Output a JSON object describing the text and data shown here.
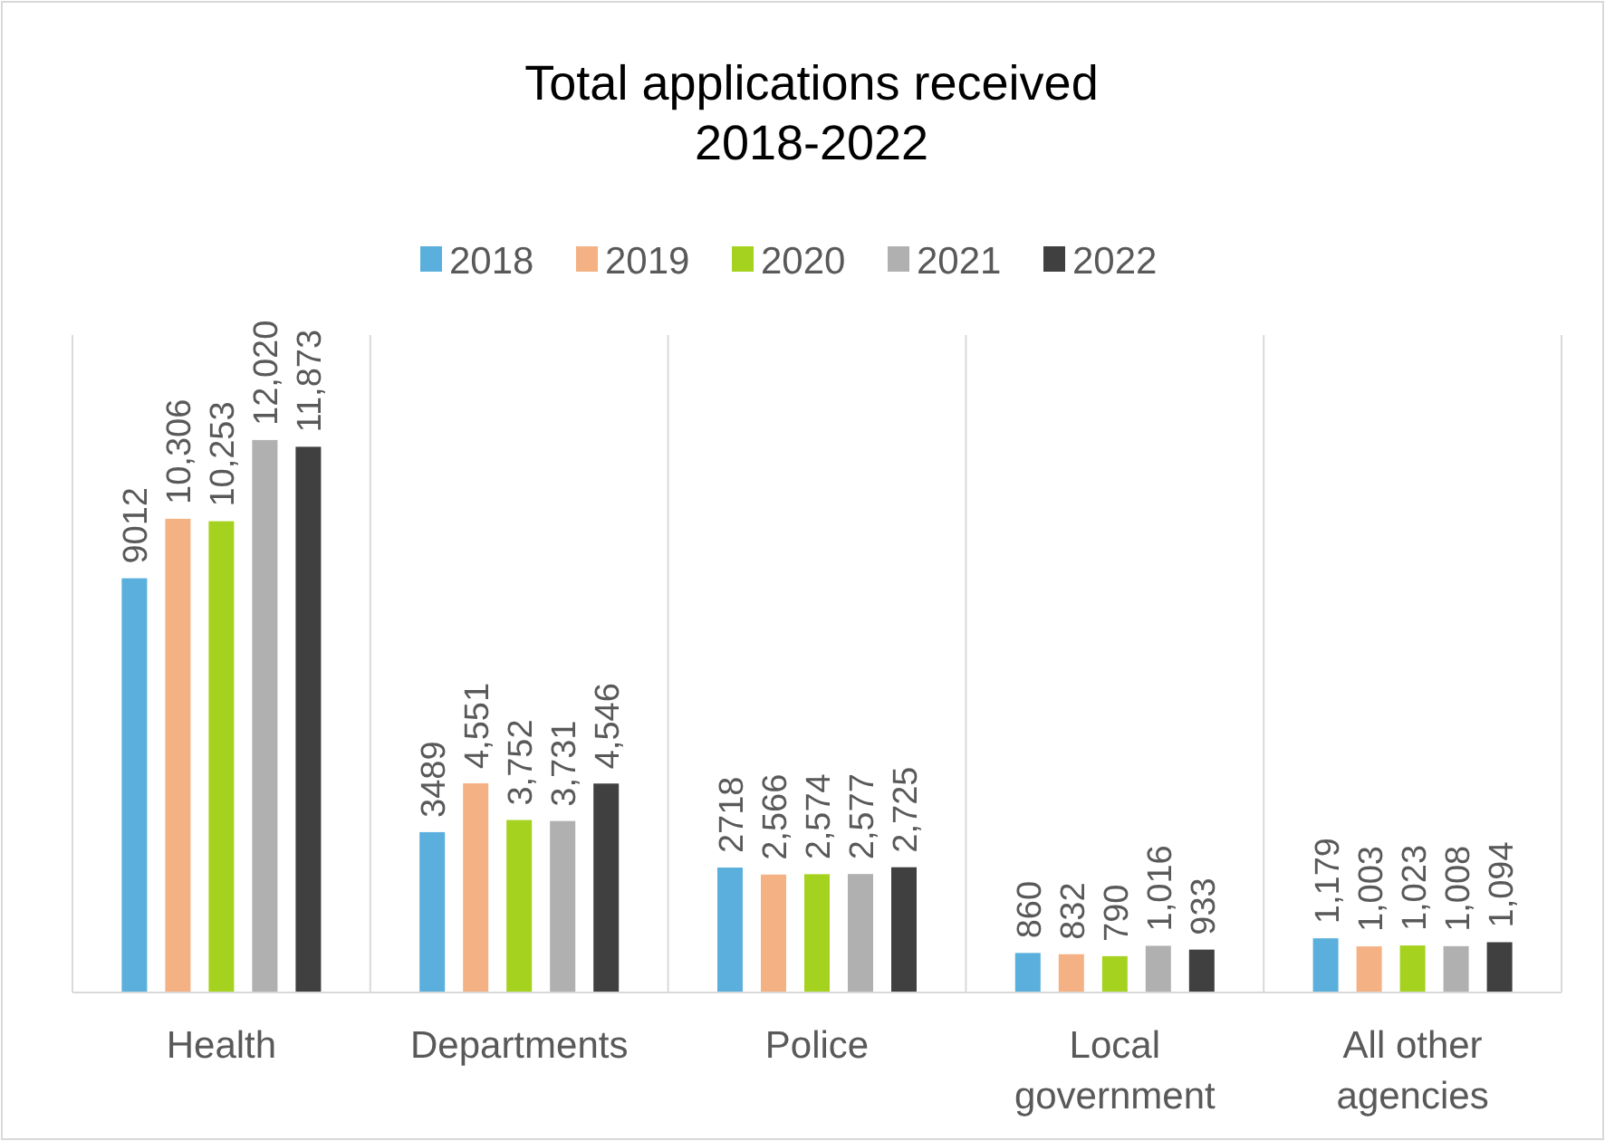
{
  "chart_data": {
    "type": "bar",
    "title": "Total applications received\n2018-2022",
    "categories": [
      "Health",
      "Departments",
      "Police",
      "Local government",
      "All other agencies"
    ],
    "series": [
      {
        "name": "2018",
        "color": "#5aafdc",
        "values": [
          9012,
          3489,
          2718,
          860,
          1179
        ],
        "value_labels": [
          "9012",
          "3489",
          "2718",
          "860",
          "1,179"
        ]
      },
      {
        "name": "2019",
        "color": "#f4b183",
        "values": [
          10306,
          4551,
          2566,
          832,
          1003
        ],
        "value_labels": [
          "10,306",
          "4,551",
          "2,566",
          "832",
          "1,003"
        ]
      },
      {
        "name": "2020",
        "color": "#a5d21e",
        "values": [
          10253,
          3752,
          2574,
          790,
          1023
        ],
        "value_labels": [
          "10,253",
          "3,752",
          "2,574",
          "790",
          "1,023"
        ]
      },
      {
        "name": "2021",
        "color": "#b0b0b0",
        "values": [
          12020,
          3731,
          2577,
          1016,
          1008
        ],
        "value_labels": [
          "12,020",
          "3,731",
          "2,577",
          "1,016",
          "1,008"
        ]
      },
      {
        "name": "2022",
        "color": "#404040",
        "values": [
          11873,
          4546,
          2725,
          933,
          1094
        ],
        "value_labels": [
          "11,873",
          "4,546",
          "2,725",
          "933",
          "1,094"
        ]
      }
    ],
    "grid": "x",
    "legend": "top"
  }
}
